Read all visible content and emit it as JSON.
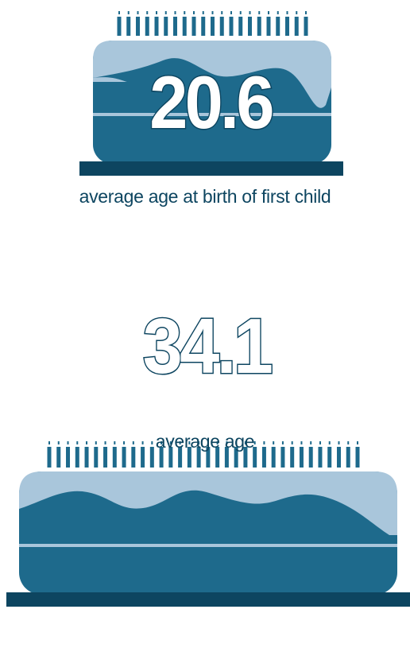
{
  "cakes": [
    {
      "value": "20.6",
      "label": "average age at birth of first child",
      "candle_count": 21
    },
    {
      "value": "34.1",
      "label": "average age",
      "candle_count": 34
    }
  ],
  "colors": {
    "dark": "#0d4560",
    "body": "#1e6a8c",
    "frosting": "#a9c6db",
    "text": "#ffffff"
  }
}
